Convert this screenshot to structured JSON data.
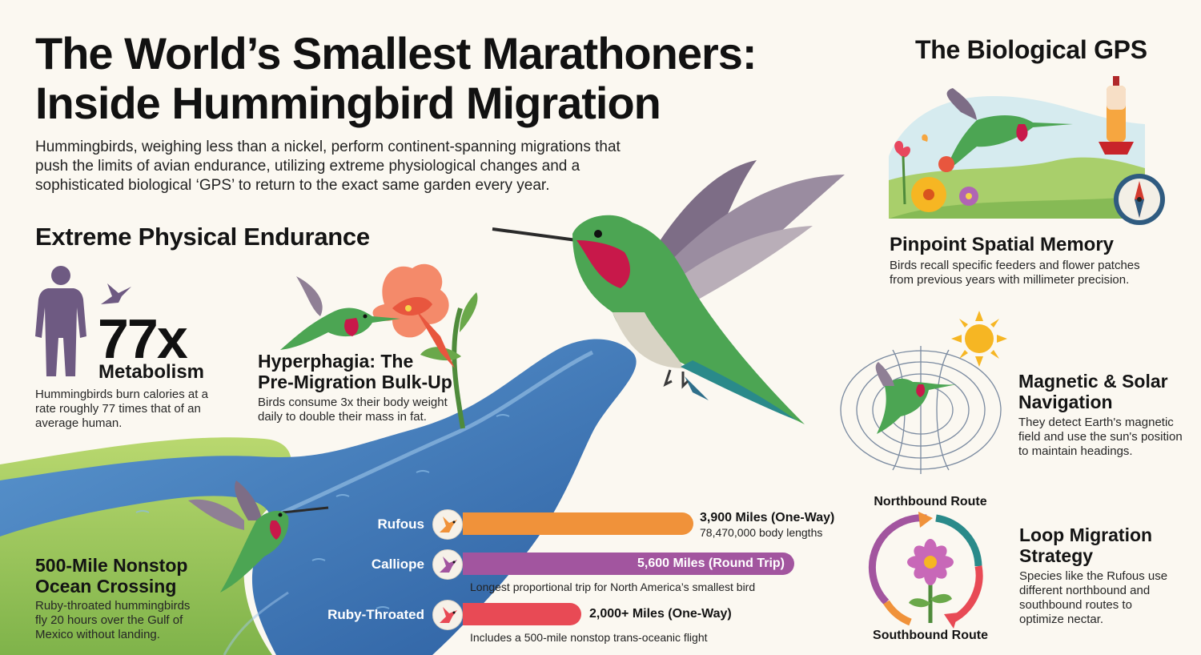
{
  "header": {
    "title_line1": "The World’s Smallest Marathoners:",
    "title_line2": "Inside Hummingbird Migration",
    "intro": "Hummingbirds, weighing less than a nickel, perform continent-spanning migrations that push the limits of avian endurance, utilizing extreme physiological changes and a sophisticated biological ‘GPS’ to return to the exact same garden every year."
  },
  "endurance": {
    "heading": "Extreme Physical Endurance",
    "metabolism": {
      "value": "77x",
      "label": "Metabolism",
      "text": "Hummingbirds burn calories at a rate roughly 77 times that of an average human."
    },
    "hyperphagia": {
      "title_line1": "Hyperphagia: The",
      "title_line2": "Pre-Migration Bulk-Up",
      "text": "Birds consume 3x their body weight daily to double their mass in fat."
    },
    "ocean": {
      "title_line1": "500-Mile Nonstop",
      "title_line2": "Ocean Crossing",
      "text": "Ruby-throated hummingbirds fly 20 hours over the Gulf of Mexico without landing."
    }
  },
  "routes": [
    {
      "name": "Rufous",
      "distance_miles": 3900,
      "value_label": "3,900 Miles (One-Way)",
      "sub": "78,470,000 body lengths",
      "color": "#f0923a"
    },
    {
      "name": "Calliope",
      "distance_miles": 5600,
      "value_label": "5,600 Miles (Round Trip)",
      "sub": "Longest proportional trip for North America’s smallest bird",
      "color": "#a2559f"
    },
    {
      "name": "Ruby-Throated",
      "distance_miles": 2000,
      "value_label": "2,000+ Miles (One-Way)",
      "sub": "Includes a 500-mile nonstop trans-oceanic flight",
      "color": "#e84a55"
    }
  ],
  "gps": {
    "heading": "The Biological GPS",
    "memory": {
      "title": "Pinpoint Spatial Memory",
      "text": "Birds recall specific feeders and flower patches from previous years with millimeter precision."
    },
    "navigation": {
      "title_line1": "Magnetic & Solar",
      "title_line2": "Navigation",
      "text": "They detect Earth's magnetic field and use the sun's position to maintain headings."
    },
    "loop": {
      "title_line1": "Loop Migration",
      "title_line2": "Strategy",
      "text": "Species like the Rufous use different northbound and southbound routes to optimize nectar.",
      "north_label": "Northbound Route",
      "south_label": "Southbound Route"
    }
  },
  "colors": {
    "river": "#3d79b8",
    "land": "#9cc75a",
    "hummingbird_green": "#3e9b4a",
    "throat_red": "#c8184a",
    "sun": "#f6b623"
  },
  "icons": [
    "human-silhouette-icon",
    "small-hummingbird-icon",
    "compass-icon",
    "sun-icon",
    "magnetic-field-icon",
    "flower-icon",
    "loop-arrows-icon",
    "feeder-icon"
  ]
}
